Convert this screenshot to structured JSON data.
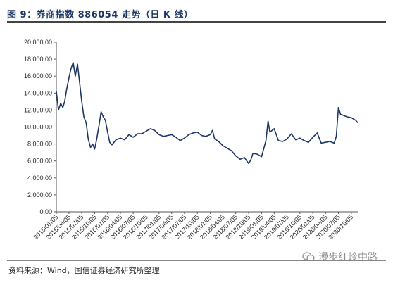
{
  "title": "图 9：券商指数 886054 走势（日 K 线）",
  "source": "资料来源：Wind，国信证券经济研究所整理",
  "watermark": "漫步红岭中路",
  "chart_data": {
    "type": "line",
    "title": "图 9：券商指数 886054 走势（日 K 线）",
    "xlabel": "",
    "ylabel": "",
    "ylim": [
      0,
      20000
    ],
    "y_ticks": [
      "0.00",
      "2,000.00",
      "4,000.00",
      "6,000.00",
      "8,000.00",
      "10,000.00",
      "12,000.00",
      "14,000.00",
      "16,000.00",
      "18,000.00",
      "20,000.00"
    ],
    "x_ticks": [
      "2015/01/05",
      "2015/04/05",
      "2015/07/05",
      "2015/10/05",
      "2016/01/05",
      "2016/04/05",
      "2016/07/05",
      "2016/10/05",
      "2017/01/05",
      "2017/04/05",
      "2017/07/05",
      "2017/10/05",
      "2018/01/05",
      "2018/04/05",
      "2018/07/05",
      "2018/10/05",
      "2019/01/05",
      "2019/04/05",
      "2019/07/05",
      "2019/10/05",
      "2020/01/05",
      "2020/04/05",
      "2020/07/05",
      "2020/10/05"
    ],
    "grid": false,
    "line_color": "#1c3563",
    "x": [
      "2015/01/05",
      "2015/01/20",
      "2015/02/05",
      "2015/02/20",
      "2015/03/05",
      "2015/03/20",
      "2015/04/05",
      "2015/04/20",
      "2015/05/05",
      "2015/05/20",
      "2015/06/05",
      "2015/06/20",
      "2015/07/05",
      "2015/07/20",
      "2015/08/05",
      "2015/08/20",
      "2015/09/05",
      "2015/09/20",
      "2015/10/05",
      "2015/10/20",
      "2015/11/05",
      "2015/11/20",
      "2015/12/05",
      "2015/12/20",
      "2016/01/05",
      "2016/01/20",
      "2016/02/05",
      "2016/03/05",
      "2016/04/05",
      "2016/05/05",
      "2016/06/05",
      "2016/07/05",
      "2016/08/05",
      "2016/09/05",
      "2016/10/05",
      "2016/11/05",
      "2016/12/05",
      "2017/01/05",
      "2017/02/05",
      "2017/03/05",
      "2017/04/05",
      "2017/05/05",
      "2017/06/05",
      "2017/07/05",
      "2017/08/05",
      "2017/09/05",
      "2017/10/05",
      "2017/11/05",
      "2017/12/05",
      "2018/01/05",
      "2018/01/20",
      "2018/02/05",
      "2018/03/05",
      "2018/04/05",
      "2018/05/05",
      "2018/06/05",
      "2018/07/05",
      "2018/08/05",
      "2018/09/05",
      "2018/10/05",
      "2018/10/20",
      "2018/11/05",
      "2018/12/05",
      "2019/01/05",
      "2019/02/05",
      "2019/02/20",
      "2019/03/05",
      "2019/04/05",
      "2019/05/05",
      "2019/06/05",
      "2019/07/05",
      "2019/08/05",
      "2019/09/05",
      "2019/10/05",
      "2019/11/05",
      "2019/12/05",
      "2020/01/05",
      "2020/02/05",
      "2020/03/05",
      "2020/04/05",
      "2020/05/05",
      "2020/06/05",
      "2020/06/20",
      "2020/07/05",
      "2020/07/20",
      "2020/08/05",
      "2020/09/05",
      "2020/10/05",
      "2020/11/05",
      "2020/11/20"
    ],
    "values": [
      14200,
      12000,
      12800,
      12300,
      13000,
      14500,
      15800,
      16900,
      17600,
      16000,
      17400,
      15200,
      13000,
      11200,
      10500,
      8600,
      7600,
      8000,
      7400,
      8600,
      10200,
      11800,
      11200,
      10800,
      9400,
      8200,
      7900,
      8500,
      8700,
      8500,
      9100,
      8800,
      9200,
      9200,
      9500,
      9800,
      9600,
      9100,
      8900,
      9000,
      9100,
      8800,
      8400,
      8700,
      9100,
      9300,
      9400,
      9000,
      8900,
      9100,
      9600,
      8600,
      8300,
      7800,
      7500,
      7200,
      6600,
      6200,
      6400,
      5700,
      6100,
      6900,
      6800,
      6500,
      8400,
      10700,
      9400,
      9800,
      8400,
      8300,
      8600,
      9200,
      8500,
      8700,
      8400,
      8200,
      8800,
      9300,
      8100,
      8200,
      8300,
      8100,
      8900,
      12300,
      11500,
      11400,
      11200,
      11100,
      10800,
      10500
    ]
  }
}
